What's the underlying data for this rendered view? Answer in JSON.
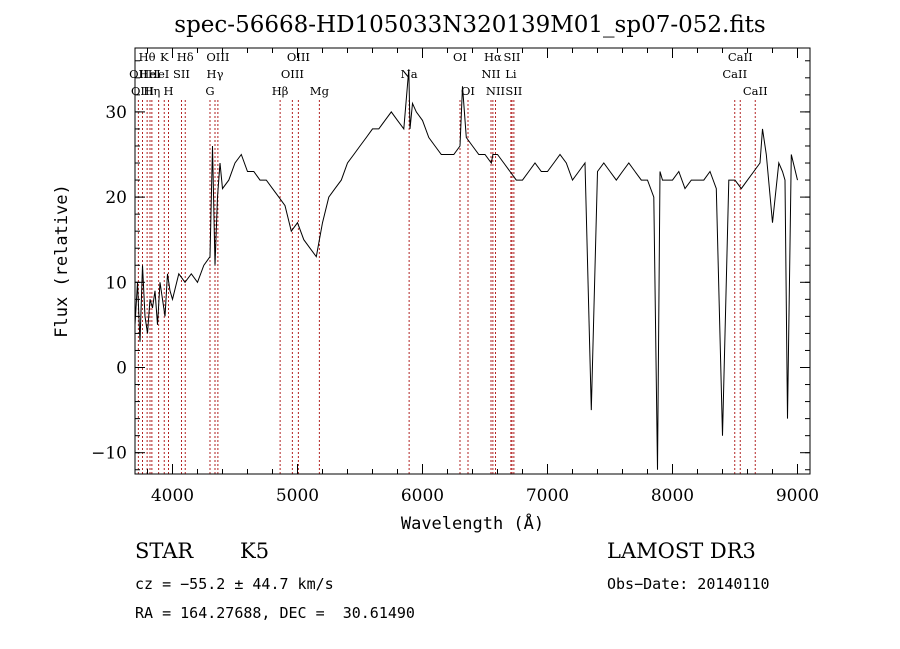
{
  "chart_data": {
    "type": "line",
    "title": "spec-56668-HD105033N320139M01_sp07-052.fits",
    "xlabel": "Wavelength (Å)",
    "ylabel": "Flux (relative)",
    "xlim": [
      3700,
      9100
    ],
    "ylim": [
      -12.5,
      37.5
    ],
    "xticks": [
      4000,
      5000,
      6000,
      7000,
      8000,
      9000
    ],
    "yticks": [
      -10,
      0,
      10,
      20,
      30
    ],
    "grid": false,
    "series": [
      {
        "x": [
          3700,
          3720,
          3740,
          3760,
          3780,
          3800,
          3820,
          3840,
          3860,
          3880,
          3900,
          3920,
          3940,
          3960,
          3980,
          4000,
          4050,
          4100,
          4150,
          4200,
          4250,
          4300,
          4320,
          4340,
          4360,
          4380,
          4400,
          4450,
          4500,
          4550,
          4600,
          4650,
          4700,
          4750,
          4800,
          4850,
          4900,
          4950,
          5000,
          5050,
          5100,
          5150,
          5200,
          5250,
          5300,
          5350,
          5400,
          5450,
          5500,
          5550,
          5600,
          5650,
          5700,
          5750,
          5800,
          5850,
          5890,
          5900,
          5920,
          5950,
          6000,
          6050,
          6100,
          6150,
          6200,
          6250,
          6300,
          6320,
          6350,
          6400,
          6450,
          6500,
          6550,
          6563,
          6600,
          6650,
          6700,
          6750,
          6800,
          6850,
          6900,
          6950,
          7000,
          7050,
          7100,
          7150,
          7200,
          7250,
          7300,
          7350,
          7400,
          7450,
          7500,
          7550,
          7600,
          7650,
          7700,
          7750,
          7800,
          7850,
          7880,
          7900,
          7920,
          7950,
          8000,
          8050,
          8100,
          8150,
          8200,
          8250,
          8300,
          8350,
          8400,
          8450,
          8500,
          8550,
          8600,
          8650,
          8700,
          8720,
          8750,
          8800,
          8850,
          8880,
          8900,
          8920,
          8950,
          9000
        ],
        "y": [
          5,
          10,
          3,
          12,
          6,
          4,
          8,
          7,
          9,
          5,
          10,
          8,
          6,
          11,
          9,
          8,
          11,
          10,
          11,
          10,
          12,
          13,
          26,
          12,
          20,
          24,
          21,
          22,
          24,
          25,
          23,
          23,
          22,
          22,
          21,
          20,
          19,
          16,
          17,
          15,
          14,
          13,
          17,
          20,
          21,
          22,
          24,
          25,
          26,
          27,
          28,
          28,
          29,
          30,
          29,
          28,
          35,
          28,
          31,
          30,
          29,
          27,
          26,
          25,
          25,
          25,
          26,
          33,
          27,
          26,
          25,
          25,
          24,
          25,
          25,
          24,
          23,
          22,
          22,
          23,
          24,
          23,
          23,
          24,
          25,
          24,
          22,
          23,
          24,
          -5,
          23,
          24,
          23,
          22,
          23,
          24,
          23,
          22,
          22,
          20,
          -12,
          23,
          22,
          22,
          22,
          23,
          21,
          22,
          22,
          22,
          23,
          21,
          -8,
          22,
          22,
          21,
          22,
          23,
          24,
          28,
          25,
          17,
          24,
          23,
          22,
          -6,
          25,
          22
        ]
      }
    ],
    "line_ids": [
      {
        "wave": 3727,
        "label": "OII",
        "row": 1
      },
      {
        "wave": 3760,
        "label": "OIII",
        "row": 2
      },
      {
        "wave": 3797,
        "label": "Hθ",
        "row": 0
      },
      {
        "wave": 3820,
        "label": "HeI",
        "row": 1
      },
      {
        "wave": 3835,
        "label": "Hη",
        "row": 2
      },
      {
        "wave": 3889,
        "label": "HeI",
        "row": 1
      },
      {
        "wave": 3934,
        "label": "K",
        "row": 0
      },
      {
        "wave": 3968,
        "label": "H",
        "row": 2
      },
      {
        "wave": 4072,
        "label": "SII",
        "row": 1
      },
      {
        "wave": 4102,
        "label": "Hδ",
        "row": 0
      },
      {
        "wave": 4300,
        "label": "G",
        "row": 2
      },
      {
        "wave": 4340,
        "label": "Hγ",
        "row": 1
      },
      {
        "wave": 4363,
        "label": "OIII",
        "row": 0
      },
      {
        "wave": 4861,
        "label": "Hβ",
        "row": 2
      },
      {
        "wave": 4959,
        "label": "OIII",
        "row": 1
      },
      {
        "wave": 5007,
        "label": "OIII",
        "row": 0
      },
      {
        "wave": 5175,
        "label": "Mg",
        "row": 2
      },
      {
        "wave": 5893,
        "label": "Na",
        "row": 1
      },
      {
        "wave": 6300,
        "label": "OI",
        "row": 0
      },
      {
        "wave": 6364,
        "label": "OI",
        "row": 2
      },
      {
        "wave": 6548,
        "label": "NII",
        "row": 1
      },
      {
        "wave": 6563,
        "label": "Hα",
        "row": 0
      },
      {
        "wave": 6584,
        "label": "NII",
        "row": 2
      },
      {
        "wave": 6707,
        "label": "Li",
        "row": 1
      },
      {
        "wave": 6716,
        "label": "SII",
        "row": 0
      },
      {
        "wave": 6731,
        "label": "SII",
        "row": 2
      },
      {
        "wave": 8498,
        "label": "CaII",
        "row": 1
      },
      {
        "wave": 8542,
        "label": "CaII",
        "row": 0
      },
      {
        "wave": 8662,
        "label": "CaII",
        "row": 2
      }
    ],
    "line_color": "#b22222"
  },
  "info": {
    "object_class": "STAR",
    "subclass": "K5",
    "survey": "LAMOST DR3",
    "cz": "cz = −55.2 ± 44.7 km/s",
    "obs_date": "Obs−Date: 20140110",
    "coords": "RA = 164.27688, DEC =  30.61490"
  }
}
